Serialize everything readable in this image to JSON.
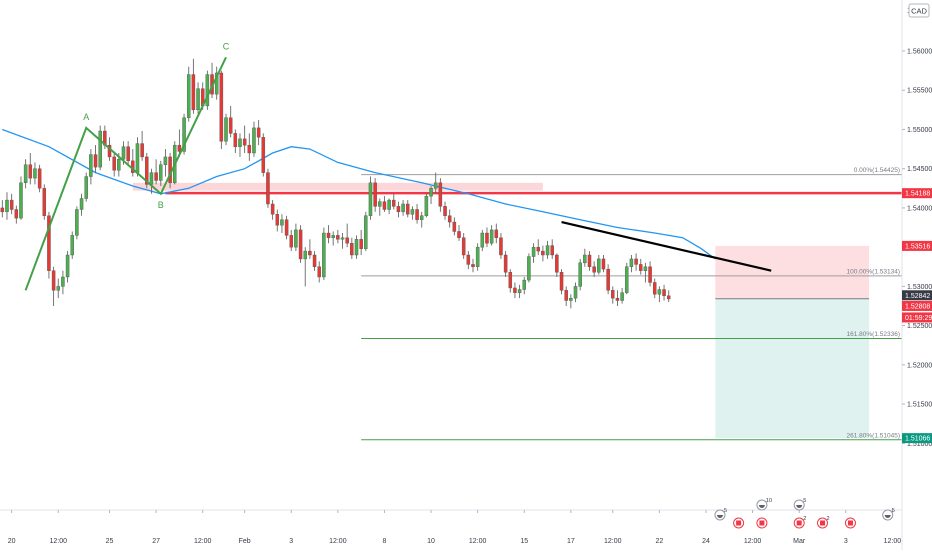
{
  "currency_badge": "CAD",
  "countdown": "01:59:29",
  "chart_data": {
    "type": "candlestick",
    "ylim": [
      1.5015,
      1.5665
    ],
    "y_ticks": [
      "1.56000",
      "1.55500",
      "1.55000",
      "1.54500",
      "1.54000",
      "1.53500",
      "1.53000",
      "1.52500",
      "1.52000",
      "1.51500",
      "1.51000"
    ],
    "y_tick_values": [
      1.56,
      1.555,
      1.55,
      1.545,
      1.54,
      1.535,
      1.53,
      1.525,
      1.52,
      1.515,
      1.51
    ],
    "top_partial_tick": "1.5",
    "x_ticks": [
      "20",
      "12:00",
      "25",
      "27",
      "12:00",
      "Feb",
      "3",
      "12:00",
      "8",
      "10",
      "12:00",
      "15",
      "17",
      "12:00",
      "22",
      "24",
      "12:00",
      "Mar",
      "3",
      "12:00",
      "8"
    ],
    "x_tick_bars": [
      2,
      12,
      23,
      33,
      43,
      52,
      62,
      72,
      82,
      92,
      102,
      112,
      122,
      131,
      141,
      151,
      161,
      171,
      181,
      191,
      201
    ],
    "price_labels": [
      {
        "text": "1.54188",
        "value": 1.54188,
        "color": "#f23645"
      },
      {
        "text": "1.53516",
        "value": 1.53516,
        "color": "#f23645"
      },
      {
        "text": "1.52842",
        "value": 1.52842,
        "color": "#363a45"
      },
      {
        "text": "1.52808",
        "value": 1.52808,
        "color": "#f23645"
      },
      {
        "text": "1.51066",
        "value": 1.51066,
        "color": "#089981"
      }
    ],
    "fib_levels": [
      {
        "label": "0.00%(1.54425)",
        "value": 1.54425,
        "color": "#9e9e9e"
      },
      {
        "label": "100.00%(1.53134)",
        "value": 1.53134,
        "color": "#9e9e9e"
      },
      {
        "label": "161.80%(1.52336)",
        "value": 1.52336,
        "color": "#43a047"
      },
      {
        "label": "261.80%(1.51045)",
        "value": 1.51045,
        "color": "#43a047"
      }
    ],
    "wave_points": [
      {
        "label": "",
        "bar": 5,
        "value": 1.5295
      },
      {
        "label": "A",
        "bar": 18,
        "value": 1.5502
      },
      {
        "label": "B",
        "bar": 34,
        "value": 1.5418
      },
      {
        "label": "C",
        "bar": 48,
        "value": 1.5592
      }
    ],
    "resistance_line": {
      "value": 1.54188,
      "bar_start": 35,
      "bar_end": 201
    },
    "supply_zone": {
      "low": 1.5422,
      "high": 1.5432,
      "bar_start": 28,
      "bar_end": 116
    },
    "trendline": {
      "bar_start": 120,
      "value_start": 1.5382,
      "bar_end": 165,
      "value_end": 1.532
    },
    "short_position": {
      "entry": 1.52842,
      "stop": 1.53516,
      "target": 1.51066,
      "bar_start": 153,
      "bar_end": 186
    },
    "candles": [
      [
        1.54,
        1.541,
        1.5388,
        1.5395
      ],
      [
        1.5395,
        1.542,
        1.5385,
        1.541
      ],
      [
        1.541,
        1.5418,
        1.5392,
        1.5398
      ],
      [
        1.5398,
        1.5403,
        1.538,
        1.5387
      ],
      [
        1.5387,
        1.544,
        1.5385,
        1.5432
      ],
      [
        1.5432,
        1.5462,
        1.5425,
        1.5455
      ],
      [
        1.5455,
        1.547,
        1.543,
        1.5438
      ],
      [
        1.5438,
        1.5458,
        1.543,
        1.545
      ],
      [
        1.545,
        1.5455,
        1.542,
        1.5425
      ],
      [
        1.5425,
        1.543,
        1.5385,
        1.539
      ],
      [
        1.539,
        1.5395,
        1.531,
        1.532
      ],
      [
        1.532,
        1.5325,
        1.5275,
        1.5295
      ],
      [
        1.5295,
        1.531,
        1.5285,
        1.53
      ],
      [
        1.53,
        1.532,
        1.529,
        1.5312
      ],
      [
        1.5312,
        1.5345,
        1.5305,
        1.534
      ],
      [
        1.534,
        1.537,
        1.5335,
        1.5365
      ],
      [
        1.5365,
        1.5402,
        1.536,
        1.5398
      ],
      [
        1.5398,
        1.5418,
        1.539,
        1.5412
      ],
      [
        1.5412,
        1.5445,
        1.5408,
        1.544
      ],
      [
        1.544,
        1.5475,
        1.543,
        1.5468
      ],
      [
        1.5468,
        1.548,
        1.5445,
        1.5452
      ],
      [
        1.5452,
        1.5505,
        1.5448,
        1.5498
      ],
      [
        1.5498,
        1.5505,
        1.5475,
        1.548
      ],
      [
        1.548,
        1.549,
        1.546,
        1.5465
      ],
      [
        1.5465,
        1.5472,
        1.544,
        1.5448
      ],
      [
        1.5448,
        1.547,
        1.544,
        1.5462
      ],
      [
        1.5462,
        1.5485,
        1.5455,
        1.5478
      ],
      [
        1.5478,
        1.5485,
        1.5455,
        1.546
      ],
      [
        1.546,
        1.5475,
        1.544,
        1.5445
      ],
      [
        1.5445,
        1.549,
        1.544,
        1.5482
      ],
      [
        1.5482,
        1.5498,
        1.546,
        1.5465
      ],
      [
        1.5465,
        1.547,
        1.5425,
        1.543
      ],
      [
        1.543,
        1.545,
        1.5418,
        1.5445
      ],
      [
        1.5445,
        1.5462,
        1.543,
        1.5435
      ],
      [
        1.5435,
        1.546,
        1.5428,
        1.5455
      ],
      [
        1.5455,
        1.5475,
        1.544,
        1.5465
      ],
      [
        1.5465,
        1.547,
        1.5425,
        1.5432
      ],
      [
        1.5432,
        1.5485,
        1.543,
        1.548
      ],
      [
        1.548,
        1.55,
        1.5465,
        1.5472
      ],
      [
        1.5472,
        1.552,
        1.5468,
        1.5515
      ],
      [
        1.5515,
        1.558,
        1.551,
        1.557
      ],
      [
        1.557,
        1.559,
        1.552,
        1.5525
      ],
      [
        1.5525,
        1.556,
        1.552,
        1.5552
      ],
      [
        1.5552,
        1.556,
        1.5525,
        1.553
      ],
      [
        1.553,
        1.5575,
        1.5525,
        1.557
      ],
      [
        1.557,
        1.5585,
        1.554,
        1.5545
      ],
      [
        1.5545,
        1.558,
        1.5538,
        1.5572
      ],
      [
        1.5572,
        1.5575,
        1.5475,
        1.5485
      ],
      [
        1.5485,
        1.552,
        1.548,
        1.5515
      ],
      [
        1.5515,
        1.553,
        1.549,
        1.5495
      ],
      [
        1.5495,
        1.55,
        1.547,
        1.5478
      ],
      [
        1.5478,
        1.5495,
        1.5465,
        1.5488
      ],
      [
        1.5488,
        1.5505,
        1.547,
        1.548
      ],
      [
        1.548,
        1.5495,
        1.546,
        1.547
      ],
      [
        1.547,
        1.551,
        1.5465,
        1.5502
      ],
      [
        1.5502,
        1.5512,
        1.548,
        1.549
      ],
      [
        1.549,
        1.5495,
        1.544,
        1.5445
      ],
      [
        1.5445,
        1.545,
        1.54,
        1.5405
      ],
      [
        1.5405,
        1.541,
        1.5385,
        1.5392
      ],
      [
        1.5392,
        1.5398,
        1.537,
        1.5378
      ],
      [
        1.5378,
        1.5392,
        1.5368,
        1.5385
      ],
      [
        1.5385,
        1.539,
        1.536,
        1.5365
      ],
      [
        1.5365,
        1.5372,
        1.5345,
        1.535
      ],
      [
        1.535,
        1.538,
        1.5345,
        1.5372
      ],
      [
        1.5372,
        1.5378,
        1.533,
        1.5335
      ],
      [
        1.5335,
        1.535,
        1.53,
        1.5345
      ],
      [
        1.5345,
        1.536,
        1.5335,
        1.534
      ],
      [
        1.534,
        1.5345,
        1.532,
        1.5325
      ],
      [
        1.5325,
        1.5332,
        1.5305,
        1.5312
      ],
      [
        1.5312,
        1.5375,
        1.5308,
        1.5368
      ],
      [
        1.5368,
        1.5378,
        1.5355,
        1.5362
      ],
      [
        1.5362,
        1.537,
        1.5352,
        1.5365
      ],
      [
        1.5365,
        1.5372,
        1.5355,
        1.536
      ],
      [
        1.536,
        1.5368,
        1.5348,
        1.5362
      ],
      [
        1.5362,
        1.538,
        1.535,
        1.5355
      ],
      [
        1.5355,
        1.5362,
        1.5335,
        1.534
      ],
      [
        1.534,
        1.5365,
        1.5335,
        1.536
      ],
      [
        1.536,
        1.5372,
        1.534,
        1.5348
      ],
      [
        1.5348,
        1.5395,
        1.5345,
        1.539
      ],
      [
        1.539,
        1.544,
        1.5385,
        1.5432
      ],
      [
        1.5432,
        1.5438,
        1.5395,
        1.5402
      ],
      [
        1.5402,
        1.5412,
        1.539,
        1.5408
      ],
      [
        1.5408,
        1.5415,
        1.5395,
        1.5398
      ],
      [
        1.5398,
        1.5412,
        1.5392,
        1.541
      ],
      [
        1.541,
        1.5418,
        1.5398,
        1.5402
      ],
      [
        1.5402,
        1.5408,
        1.5388,
        1.5395
      ],
      [
        1.5395,
        1.541,
        1.539,
        1.5405
      ],
      [
        1.5405,
        1.541,
        1.5388,
        1.5392
      ],
      [
        1.5392,
        1.5402,
        1.5385,
        1.5398
      ],
      [
        1.5398,
        1.5405,
        1.538,
        1.5385
      ],
      [
        1.5385,
        1.5395,
        1.5375,
        1.539
      ],
      [
        1.539,
        1.5418,
        1.5388,
        1.5415
      ],
      [
        1.5415,
        1.5428,
        1.5405,
        1.5425
      ],
      [
        1.5425,
        1.5445,
        1.5418,
        1.5432
      ],
      [
        1.5432,
        1.5438,
        1.5395,
        1.5402
      ],
      [
        1.5402,
        1.5408,
        1.5385,
        1.539
      ],
      [
        1.539,
        1.5398,
        1.5375,
        1.5382
      ],
      [
        1.5382,
        1.5388,
        1.5365,
        1.537
      ],
      [
        1.537,
        1.5378,
        1.5358,
        1.5362
      ],
      [
        1.5362,
        1.5368,
        1.5335,
        1.534
      ],
      [
        1.534,
        1.5345,
        1.5322,
        1.5328
      ],
      [
        1.5328,
        1.5335,
        1.5318,
        1.5325
      ],
      [
        1.5325,
        1.5355,
        1.532,
        1.535
      ],
      [
        1.535,
        1.5372,
        1.5345,
        1.5368
      ],
      [
        1.5368,
        1.5375,
        1.535,
        1.5355
      ],
      [
        1.5355,
        1.5378,
        1.5352,
        1.5372
      ],
      [
        1.5372,
        1.538,
        1.5355,
        1.5362
      ],
      [
        1.5362,
        1.5368,
        1.5335,
        1.534
      ],
      [
        1.534,
        1.5345,
        1.5312,
        1.5318
      ],
      [
        1.5318,
        1.5322,
        1.5292,
        1.5298
      ],
      [
        1.5298,
        1.5305,
        1.5285,
        1.5292
      ],
      [
        1.5292,
        1.5302,
        1.5285,
        1.5296
      ],
      [
        1.5296,
        1.5312,
        1.529,
        1.5308
      ],
      [
        1.5308,
        1.5342,
        1.5305,
        1.5338
      ],
      [
        1.5338,
        1.5355,
        1.533,
        1.535
      ],
      [
        1.535,
        1.536,
        1.534,
        1.5345
      ],
      [
        1.5345,
        1.5352,
        1.5332,
        1.534
      ],
      [
        1.534,
        1.5358,
        1.5335,
        1.5352
      ],
      [
        1.5352,
        1.536,
        1.5335,
        1.534
      ],
      [
        1.534,
        1.5342,
        1.5312,
        1.5318
      ],
      [
        1.5318,
        1.5322,
        1.529,
        1.5295
      ],
      [
        1.5295,
        1.53,
        1.5275,
        1.5282
      ],
      [
        1.5282,
        1.529,
        1.5272,
        1.5285
      ],
      [
        1.5285,
        1.5305,
        1.528,
        1.53
      ],
      [
        1.53,
        1.5335,
        1.5295,
        1.533
      ],
      [
        1.533,
        1.5348,
        1.5325,
        1.534
      ],
      [
        1.534,
        1.5345,
        1.532,
        1.5325
      ],
      [
        1.5325,
        1.5332,
        1.5312,
        1.5318
      ],
      [
        1.5318,
        1.534,
        1.5315,
        1.5335
      ],
      [
        1.5335,
        1.534,
        1.5318,
        1.5322
      ],
      [
        1.5322,
        1.5328,
        1.529,
        1.5295
      ],
      [
        1.5295,
        1.53,
        1.5278,
        1.5285
      ],
      [
        1.5285,
        1.5295,
        1.5275,
        1.5282
      ],
      [
        1.5282,
        1.5298,
        1.5278,
        1.5292
      ],
      [
        1.5292,
        1.533,
        1.529,
        1.5325
      ],
      [
        1.5325,
        1.534,
        1.5318,
        1.5335
      ],
      [
        1.5335,
        1.5342,
        1.532,
        1.5328
      ],
      [
        1.5328,
        1.5335,
        1.5315,
        1.532
      ],
      [
        1.532,
        1.533,
        1.5305,
        1.5325
      ],
      [
        1.5325,
        1.5332,
        1.53,
        1.5305
      ],
      [
        1.5305,
        1.531,
        1.5285,
        1.529
      ],
      [
        1.529,
        1.53,
        1.528,
        1.5296
      ],
      [
        1.5296,
        1.5302,
        1.5282,
        1.5288
      ],
      [
        1.5288,
        1.5295,
        1.528,
        1.5284
      ]
    ],
    "ma_points": [
      [
        0,
        1.55
      ],
      [
        10,
        1.5478
      ],
      [
        20,
        1.5445
      ],
      [
        28,
        1.5428
      ],
      [
        34,
        1.5418
      ],
      [
        40,
        1.5425
      ],
      [
        46,
        1.544
      ],
      [
        52,
        1.545
      ],
      [
        58,
        1.547
      ],
      [
        62,
        1.5478
      ],
      [
        66,
        1.5475
      ],
      [
        72,
        1.5458
      ],
      [
        80,
        1.5445
      ],
      [
        90,
        1.5432
      ],
      [
        100,
        1.5418
      ],
      [
        108,
        1.5405
      ],
      [
        116,
        1.5395
      ],
      [
        124,
        1.5385
      ],
      [
        132,
        1.5375
      ],
      [
        140,
        1.5368
      ],
      [
        146,
        1.5362
      ],
      [
        150,
        1.5348
      ],
      [
        153,
        1.5335
      ]
    ]
  },
  "event_icons": [
    {
      "id": "ev1",
      "bar": 154,
      "row": 1,
      "type": "earnings",
      "count": "5"
    },
    {
      "id": "ev2",
      "bar": 163,
      "row": 0,
      "type": "earnings",
      "count": "10"
    },
    {
      "id": "ev3",
      "bar": 171,
      "row": 0,
      "type": "earnings",
      "count": "5"
    },
    {
      "id": "ev4",
      "bar": 158,
      "row": 2,
      "type": "flag",
      "count": ""
    },
    {
      "id": "ev5",
      "bar": 163,
      "row": 2,
      "type": "flag",
      "count": ""
    },
    {
      "id": "ev6",
      "bar": 171,
      "row": 2,
      "type": "flag",
      "count": "2"
    },
    {
      "id": "ev7",
      "bar": 176,
      "row": 2,
      "type": "flag",
      "count": "2"
    },
    {
      "id": "ev8",
      "bar": 182,
      "row": 2,
      "type": "flag",
      "count": ""
    },
    {
      "id": "ev9",
      "bar": 190,
      "row": 1,
      "type": "earnings",
      "count": "5"
    }
  ]
}
